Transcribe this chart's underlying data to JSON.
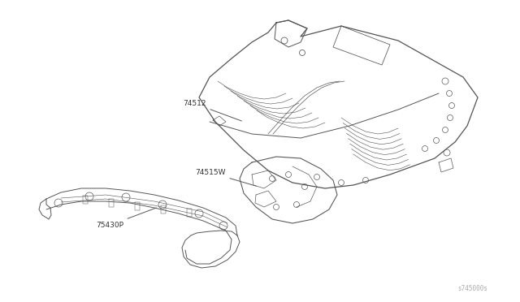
{
  "bg_color": "#ffffff",
  "line_color": "#555555",
  "lw": 0.7,
  "figsize": [
    6.4,
    3.72
  ],
  "dpi": 100,
  "watermark": "s745000s",
  "label_74512": "74512",
  "label_74515W": "74515W",
  "label_75430P": "75430P",
  "label_fontsize": 6.5
}
